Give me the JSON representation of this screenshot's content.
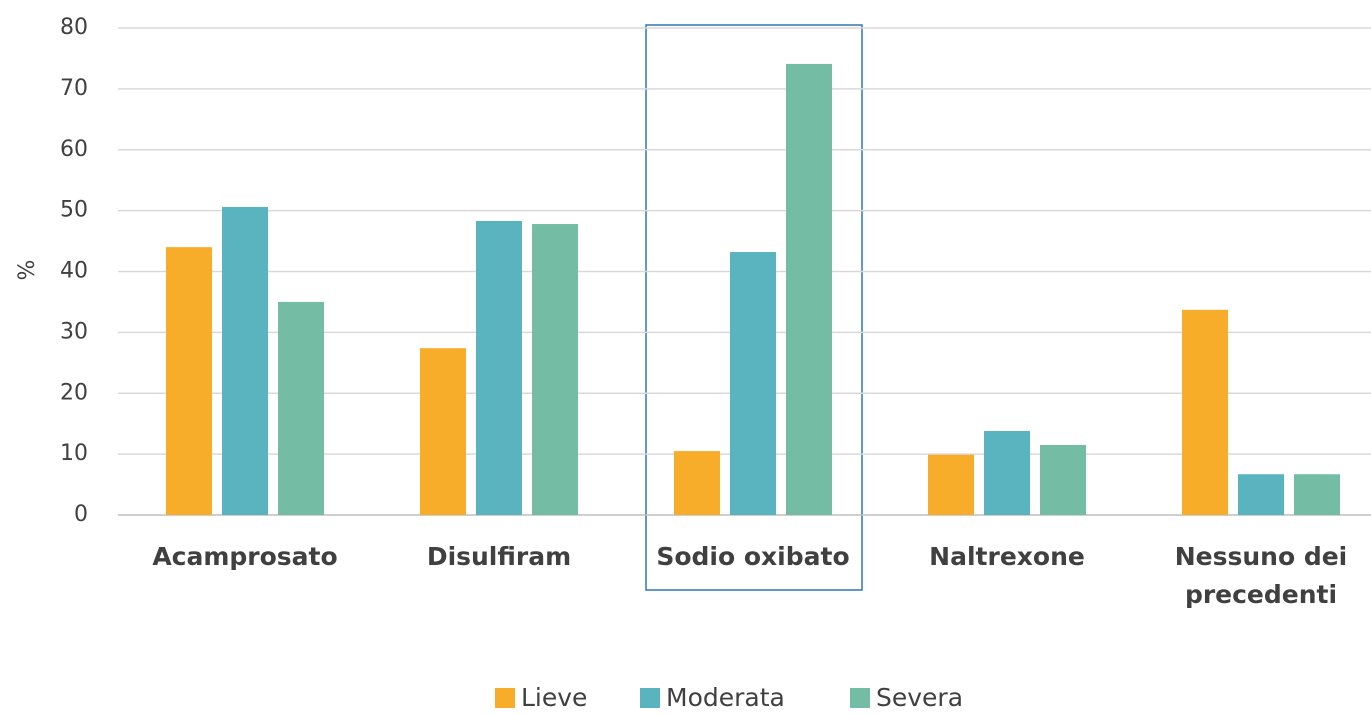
{
  "chart_data": {
    "type": "bar",
    "y_label": "%",
    "categories": [
      "Acamprosato",
      "Disulfiram",
      "Sodio oxibato",
      "Naltrexone",
      "Nessuno dei precedenti"
    ],
    "series": [
      {
        "name": "Lieve",
        "color": "#f7ac2a",
        "values": [
          44.0,
          27.4,
          10.5,
          9.9,
          33.7
        ]
      },
      {
        "name": "Moderata",
        "color": "#5ab4c0",
        "values": [
          50.6,
          48.3,
          43.2,
          13.8,
          6.7
        ]
      },
      {
        "name": "Severa",
        "color": "#74bda4",
        "values": [
          35.0,
          47.8,
          74.1,
          11.5,
          6.7
        ]
      }
    ],
    "ylim": [
      0,
      80
    ],
    "yticks": [
      0,
      10,
      20,
      30,
      40,
      50,
      60,
      70,
      80
    ],
    "grid": true
  }
}
